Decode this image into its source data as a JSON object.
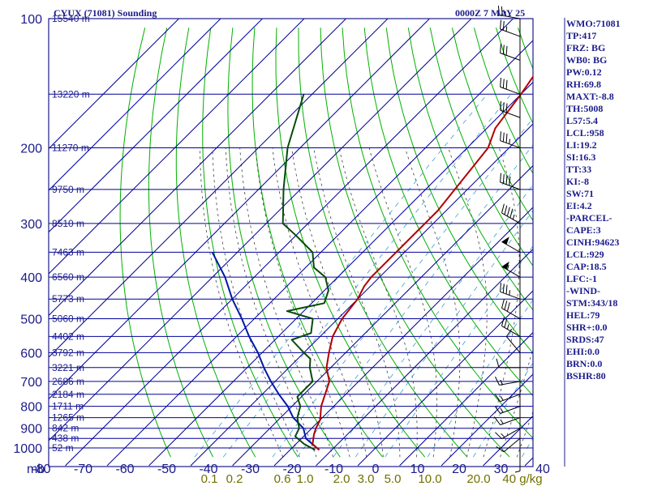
{
  "header": {
    "title": "CYUX (71081) Sounding",
    "datetime": "0000Z  7 MAY 25"
  },
  "indices": [
    "WMO:71081",
    "TP:417",
    "FRZ: BG",
    "WB0: BG",
    "PW:0.12",
    "RH:69.8",
    "MAXT:-8.8",
    "TH:5008",
    "L57:5.4",
    "LCL:958",
    "LI:19.2",
    "SI:16.3",
    "TT:33",
    "KI:-8",
    "SW:71",
    "EI:4.2",
    "-PARCEL-",
    "CAPE:3",
    "CINH:94623",
    "LCL:929",
    "CAP:18.5",
    "LFC:-1",
    "-WIND-",
    "STM:343/18",
    "HEL:79",
    "SHR+:0.0",
    "SRDS:47",
    "EHI:0.0",
    "BRN:0.0",
    "BSHR:80"
  ],
  "chart_data": {
    "type": "line",
    "title": "CYUX (71081) Sounding",
    "subtitle": "0000Z  7 MAY 25",
    "xlabel": "",
    "ylabel": "mb",
    "x_ticks": [
      -80,
      -70,
      -60,
      -50,
      -40,
      -30,
      -20,
      -10,
      0,
      10,
      20,
      30,
      40
    ],
    "pressure_ticks": [
      100,
      200,
      300,
      400,
      500,
      600,
      700,
      800,
      900,
      1000
    ],
    "height_labels": [
      {
        "p": 100,
        "label": "15540 m"
      },
      {
        "p": 150,
        "label": "13220 m"
      },
      {
        "p": 200,
        "label": "11270 m"
      },
      {
        "p": 250,
        "label": "9750 m"
      },
      {
        "p": 300,
        "label": "8510 m"
      },
      {
        "p": 350,
        "label": "7463 m"
      },
      {
        "p": 400,
        "label": "6560 m"
      },
      {
        "p": 450,
        "label": "5773 m"
      },
      {
        "p": 500,
        "label": "5060 m"
      },
      {
        "p": 550,
        "label": "4402 m"
      },
      {
        "p": 600,
        "label": "3792 m"
      },
      {
        "p": 650,
        "label": "3221 m"
      },
      {
        "p": 700,
        "label": "2686 m"
      },
      {
        "p": 750,
        "label": "2184 m"
      },
      {
        "p": 800,
        "label": "1711 m"
      },
      {
        "p": 850,
        "label": "1265 m"
      },
      {
        "p": 900,
        "label": "842 m"
      },
      {
        "p": 950,
        "label": "438 m"
      },
      {
        "p": 1000,
        "label": "52 m"
      }
    ],
    "mixing_ratio_labels": [
      "0.1",
      "0.2",
      "0.6",
      "1.0",
      "2.0",
      "3.0",
      "5.0",
      "10.0",
      "20.0",
      "40 g/kg"
    ],
    "series": [],
    "temperature": [
      {
        "p": 1011,
        "t": -13
      },
      {
        "p": 980,
        "t": -16
      },
      {
        "p": 930,
        "t": -18
      },
      {
        "p": 900,
        "t": -19
      },
      {
        "p": 860,
        "t": -20
      },
      {
        "p": 800,
        "t": -23
      },
      {
        "p": 700,
        "t": -27
      },
      {
        "p": 650,
        "t": -31
      },
      {
        "p": 600,
        "t": -34
      },
      {
        "p": 550,
        "t": -37
      },
      {
        "p": 500,
        "t": -39
      },
      {
        "p": 450,
        "t": -40
      },
      {
        "p": 420,
        "t": -41.5
      },
      {
        "p": 400,
        "t": -42
      },
      {
        "p": 380,
        "t": -42
      },
      {
        "p": 350,
        "t": -42
      },
      {
        "p": 300,
        "t": -42
      },
      {
        "p": 280,
        "t": -42
      },
      {
        "p": 250,
        "t": -43
      },
      {
        "p": 200,
        "t": -45
      },
      {
        "p": 180,
        "t": -48
      },
      {
        "p": 150,
        "t": -50
      },
      {
        "p": 130,
        "t": -52
      },
      {
        "p": 120,
        "t": -55
      },
      {
        "p": 110,
        "t": -59
      },
      {
        "p": 100,
        "t": -63
      }
    ],
    "dewpoint": [
      {
        "p": 1011,
        "td": -14
      },
      {
        "p": 980,
        "td": -18
      },
      {
        "p": 940,
        "td": -22
      },
      {
        "p": 900,
        "td": -23
      },
      {
        "p": 850,
        "td": -26
      },
      {
        "p": 800,
        "td": -28
      },
      {
        "p": 760,
        "td": -31
      },
      {
        "p": 700,
        "td": -31
      },
      {
        "p": 650,
        "td": -35
      },
      {
        "p": 620,
        "td": -37
      },
      {
        "p": 600,
        "td": -40
      },
      {
        "p": 560,
        "td": -46
      },
      {
        "p": 540,
        "td": -43
      },
      {
        "p": 500,
        "td": -46
      },
      {
        "p": 480,
        "td": -54
      },
      {
        "p": 460,
        "td": -47
      },
      {
        "p": 430,
        "td": -49
      },
      {
        "p": 400,
        "td": -53
      },
      {
        "p": 380,
        "td": -58
      },
      {
        "p": 350,
        "td": -62
      },
      {
        "p": 320,
        "td": -70
      },
      {
        "p": 300,
        "td": -76
      },
      {
        "p": 250,
        "td": -84
      },
      {
        "p": 200,
        "td": -93
      },
      {
        "p": 150,
        "td": -102
      }
    ],
    "parcel": [
      {
        "p": 1011,
        "t": -13
      },
      {
        "p": 950,
        "t": -19
      },
      {
        "p": 900,
        "t": -22
      },
      {
        "p": 850,
        "t": -27
      },
      {
        "p": 800,
        "t": -31
      },
      {
        "p": 750,
        "t": -36
      },
      {
        "p": 700,
        "t": -41
      },
      {
        "p": 650,
        "t": -46
      },
      {
        "p": 600,
        "t": -51
      },
      {
        "p": 550,
        "t": -57
      },
      {
        "p": 500,
        "t": -63
      },
      {
        "p": 450,
        "t": -70
      },
      {
        "p": 400,
        "t": -77
      },
      {
        "p": 350,
        "t": -86
      }
    ],
    "wind_barbs": [
      {
        "p": 1011,
        "dir": 180,
        "spd": 5
      },
      {
        "p": 950,
        "dir": 230,
        "spd": 10
      },
      {
        "p": 900,
        "dir": 240,
        "spd": 15
      },
      {
        "p": 850,
        "dir": 250,
        "spd": 15
      },
      {
        "p": 800,
        "dir": 250,
        "spd": 15
      },
      {
        "p": 750,
        "dir": 250,
        "spd": 15
      },
      {
        "p": 700,
        "dir": 260,
        "spd": 15
      },
      {
        "p": 650,
        "dir": 270,
        "spd": 10
      },
      {
        "p": 600,
        "dir": 320,
        "spd": 10
      },
      {
        "p": 550,
        "dir": 300,
        "spd": 25
      },
      {
        "p": 500,
        "dir": 300,
        "spd": 30
      },
      {
        "p": 450,
        "dir": 290,
        "spd": 35
      },
      {
        "p": 400,
        "dir": 300,
        "spd": 55
      },
      {
        "p": 350,
        "dir": 300,
        "spd": 50
      },
      {
        "p": 300,
        "dir": 300,
        "spd": 45
      },
      {
        "p": 250,
        "dir": 290,
        "spd": 40
      },
      {
        "p": 200,
        "dir": 290,
        "spd": 35
      },
      {
        "p": 170,
        "dir": 290,
        "spd": 30
      },
      {
        "p": 150,
        "dir": 290,
        "spd": 30
      },
      {
        "p": 125,
        "dir": 290,
        "spd": 30
      },
      {
        "p": 110,
        "dir": 290,
        "spd": 25
      },
      {
        "p": 100,
        "dir": 280,
        "spd": 25
      }
    ],
    "colors": {
      "frame": "#1c1c8c",
      "isotherm": "#00009a",
      "dry_adiabat": "#00b000",
      "moist_adiabat": "#404040",
      "mixing_ratio": "#3a9fd0",
      "temperature": "#b00000",
      "dewpoint": "#0a4a0a",
      "parcel": "#0018a8",
      "text": "#1c1c8c",
      "mixing_label": "#707000",
      "wind_barb": "#000000"
    }
  }
}
